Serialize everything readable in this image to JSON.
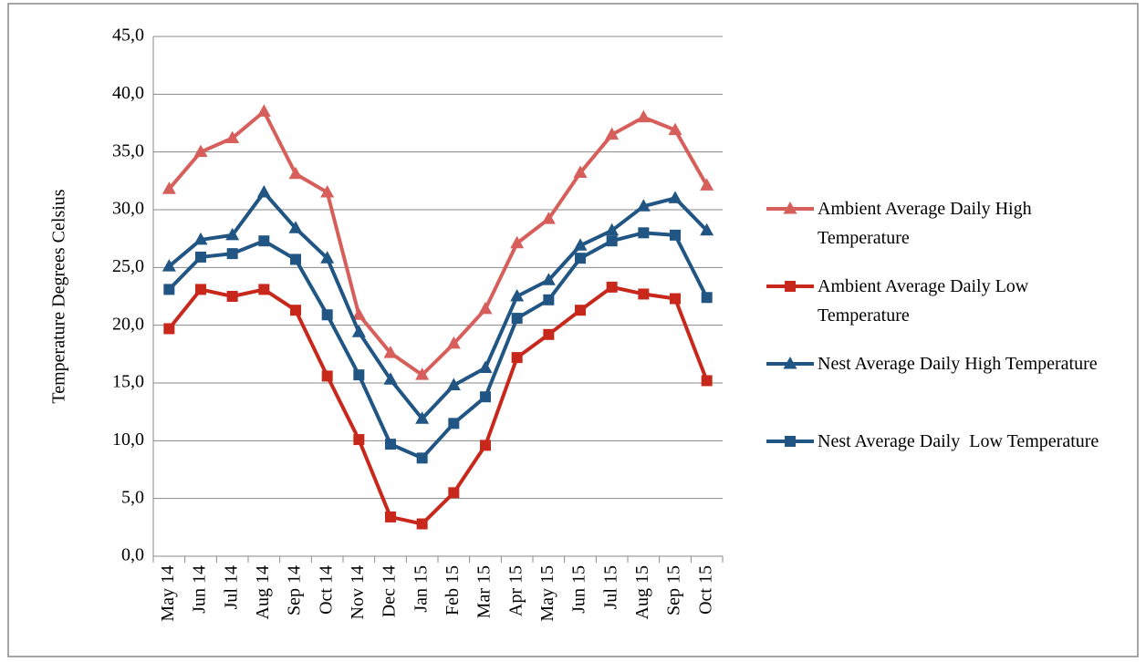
{
  "chart_data": {
    "type": "line",
    "y_label": "Temperature Degrees Celsius",
    "categories": [
      "May 14",
      "Jun 14",
      "Jul 14",
      "Aug 14",
      "Sep 14",
      "Oct 14",
      "Nov 14",
      "Dec 14",
      "Jan 15",
      "Feb 15",
      "Mar 15",
      "Apr 15",
      "May 15",
      "Jun 15",
      "Jul 15",
      "Aug 15",
      "Sep 15",
      "Oct 15"
    ],
    "series": [
      {
        "name": "Ambient Average Daily High Temperature",
        "color": "#d65f5b",
        "marker": "triangle",
        "values": [
          31.8,
          35.0,
          36.2,
          38.5,
          33.1,
          31.5,
          20.9,
          17.6,
          15.7,
          18.4,
          21.4,
          27.1,
          29.2,
          33.2,
          36.5,
          38.0,
          36.9,
          32.1
        ]
      },
      {
        "name": "Ambient Average Daily Low Temperature",
        "color": "#c8281c",
        "marker": "square",
        "values": [
          19.7,
          23.1,
          22.5,
          23.1,
          21.3,
          15.6,
          10.1,
          3.4,
          2.8,
          5.5,
          9.6,
          17.2,
          19.2,
          21.3,
          23.3,
          22.7,
          22.3,
          15.2
        ]
      },
      {
        "name": "Nest Average Daily High Temperature",
        "color": "#215584",
        "marker": "triangle",
        "values": [
          25.1,
          27.4,
          27.8,
          31.5,
          28.4,
          25.8,
          19.4,
          15.3,
          11.9,
          14.8,
          16.3,
          22.5,
          23.9,
          26.9,
          28.2,
          30.3,
          31.0,
          28.2
        ]
      },
      {
        "name": "Nest Average Daily  Low Temperature",
        "color": "#215584",
        "marker": "square",
        "values": [
          23.1,
          25.9,
          26.2,
          27.3,
          25.7,
          20.9,
          15.7,
          9.7,
          8.5,
          11.5,
          13.8,
          20.6,
          22.2,
          25.8,
          27.3,
          28.0,
          27.8,
          22.4
        ]
      }
    ],
    "ylim": [
      0,
      45
    ],
    "yticks": [
      {
        "value": 0,
        "label": "0,0"
      },
      {
        "value": 5,
        "label": "5,0"
      },
      {
        "value": 10,
        "label": "10,0"
      },
      {
        "value": 15,
        "label": "15,0"
      },
      {
        "value": 20,
        "label": "20,0"
      },
      {
        "value": 25,
        "label": "25,0"
      },
      {
        "value": 30,
        "label": "30,0"
      },
      {
        "value": 35,
        "label": "35,0"
      },
      {
        "value": 40,
        "label": "40,0"
      },
      {
        "value": 45,
        "label": "45,0"
      }
    ],
    "grid": true,
    "legend": "right"
  }
}
